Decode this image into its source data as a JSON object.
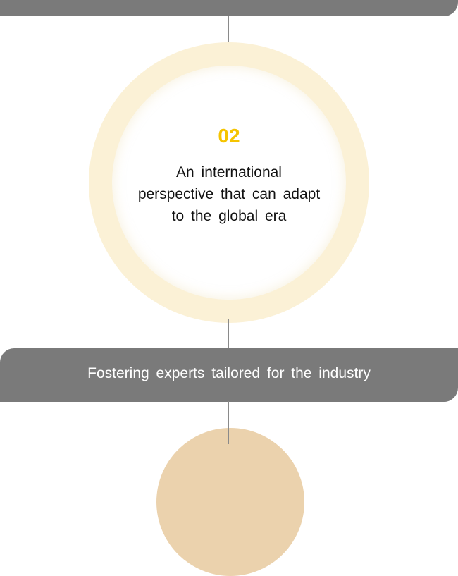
{
  "step": {
    "number": "02",
    "lines": [
      "An international",
      "perspective that can adapt",
      "to the global era"
    ]
  },
  "banner": {
    "label": "Fostering experts tailored for the industry"
  },
  "colors": {
    "bar": "#7a7a7a",
    "ring": "#fbf1d6",
    "number": "#f5c400",
    "next_circle": "#ebd2ad"
  }
}
